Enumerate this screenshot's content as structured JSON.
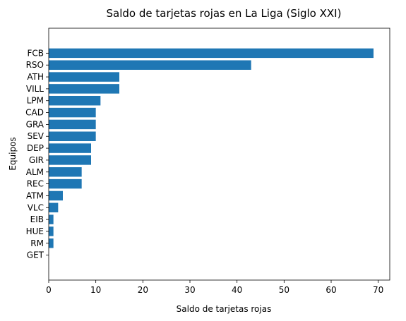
{
  "chart_data": {
    "type": "bar",
    "orientation": "horizontal",
    "title": "Saldo de tarjetas rojas en La Liga (Siglo XXI)",
    "xlabel": "Saldo de tarjetas rojas",
    "ylabel": "Equipos",
    "categories": [
      "FCB",
      "RSO",
      "ATH",
      "VILL",
      "LPM",
      "CAD",
      "GRA",
      "SEV",
      "DEP",
      "GIR",
      "ALM",
      "REC",
      "ATM",
      "VLC",
      "EIB",
      "HUE",
      "RM",
      "GET"
    ],
    "values": [
      69,
      43,
      15,
      15,
      11,
      10,
      10,
      10,
      9,
      9,
      7,
      7,
      3,
      2,
      1,
      1,
      1,
      0
    ],
    "xlim": [
      0,
      72.45
    ],
    "xticks": [
      0,
      10,
      20,
      30,
      40,
      50,
      60,
      70
    ],
    "bar_color": "#1f77b4",
    "grid": false,
    "legend": "none"
  }
}
